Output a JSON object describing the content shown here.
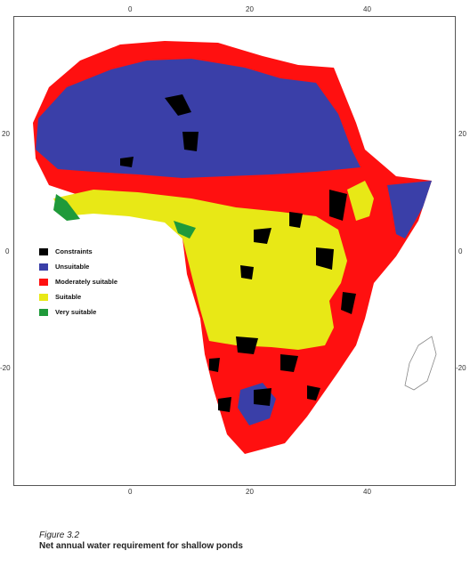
{
  "map": {
    "top_ticks": [
      "0",
      "20",
      "40"
    ],
    "bottom_ticks": [
      "0",
      "20",
      "40"
    ],
    "left_ticks": [
      "20",
      "0",
      "-20"
    ],
    "right_ticks": [
      "20",
      "0",
      "-20"
    ]
  },
  "legend": [
    {
      "label": "Constraints",
      "color": "#000000"
    },
    {
      "label": "Unsuitable",
      "color": "#3a3fa8"
    },
    {
      "label": "Moderately suitable",
      "color": "#ff1010"
    },
    {
      "label": "Suitable",
      "color": "#e8e816"
    },
    {
      "label": "Very suitable",
      "color": "#1f9a3a"
    }
  ],
  "caption": {
    "figure": "Figure 3.2",
    "title": "Net annual water requirement for shallow ponds"
  }
}
